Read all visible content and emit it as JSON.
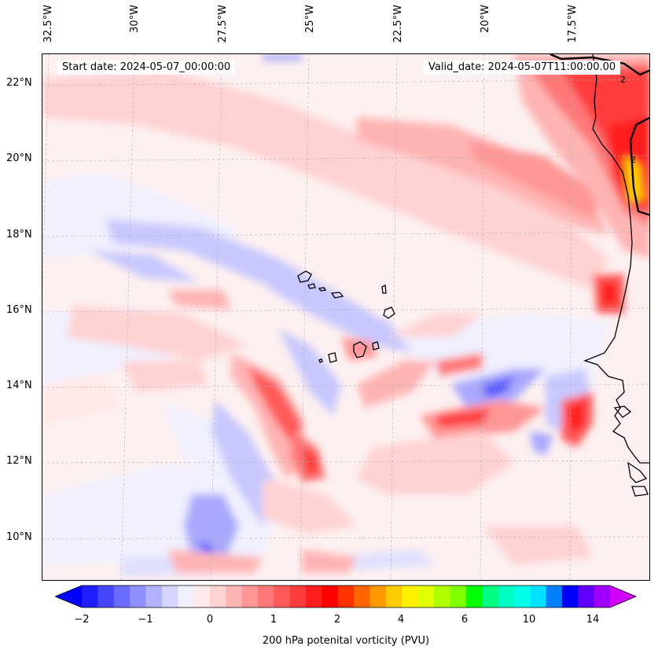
{
  "map": {
    "start_label": "Start date: 2024-05-07_00:00:00",
    "valid_label": "Valid_date: 2024-05-07T11:00:00.00",
    "lat_labels": [
      "22°N",
      "20°N",
      "18°N",
      "16°N",
      "14°N",
      "12°N",
      "10°N"
    ],
    "lon_labels": [
      "32.5°W",
      "30°W",
      "27.5°W",
      "25°W",
      "22.5°W",
      "20°W",
      "17.5°W"
    ],
    "coastline_label": "2"
  },
  "colorbar": {
    "label": "200 hPa potenital vorticity (PVU)",
    "tick_labels": [
      "−2",
      "−1",
      "0",
      "1",
      "2",
      "4",
      "6",
      "10",
      "14"
    ],
    "colors": [
      "#0000ff",
      "#2020ff",
      "#4646ff",
      "#6b6bff",
      "#8f8fff",
      "#b2b2ff",
      "#d4d4ff",
      "#f0f0ff",
      "#ffe8e8",
      "#ffd2d2",
      "#ffb4b4",
      "#ff9696",
      "#ff7878",
      "#ff5a5a",
      "#ff3c3c",
      "#ff1e1e",
      "#ff0000",
      "#ff3300",
      "#ff6600",
      "#ff9900",
      "#ffcc00",
      "#fff000",
      "#e0ff00",
      "#b0ff00",
      "#80ff00",
      "#00ff00",
      "#00ff80",
      "#00ffc0",
      "#00ffe8",
      "#00e0ff",
      "#0080ff",
      "#0000ff",
      "#6000ff",
      "#a000ff",
      "#d000ff"
    ]
  }
}
